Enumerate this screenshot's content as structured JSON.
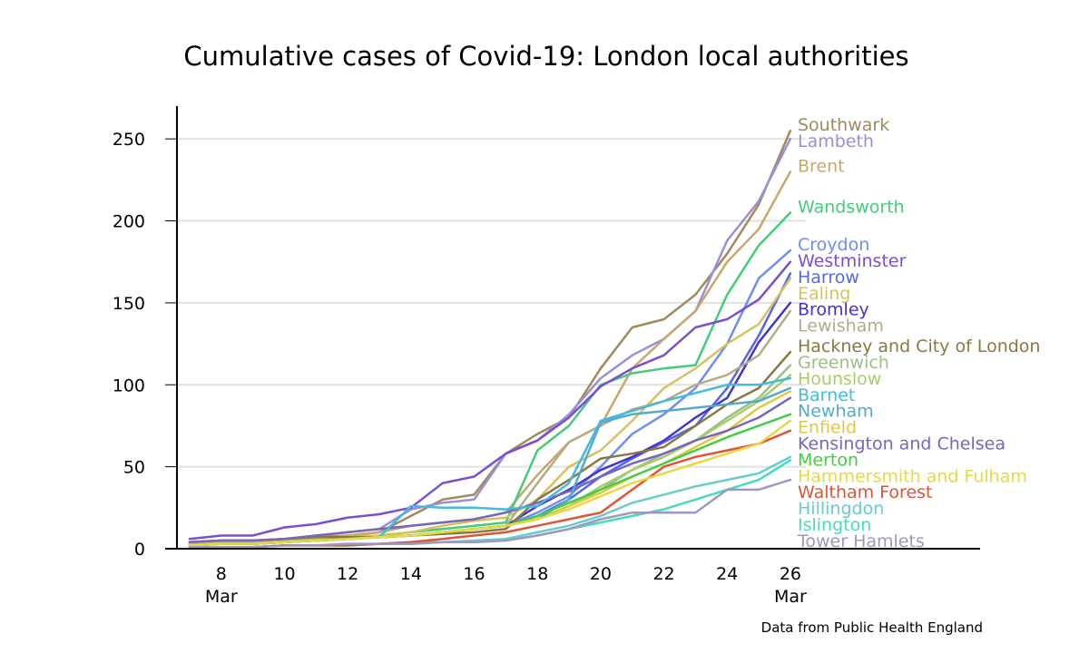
{
  "chart_data": {
    "type": "line",
    "title": "Cumulative cases of Covid-19:  London local authorities",
    "source": "Data from Public Health England",
    "x": [
      7,
      8,
      9,
      10,
      11,
      12,
      13,
      14,
      15,
      16,
      17,
      18,
      19,
      20,
      21,
      22,
      23,
      24,
      25,
      26
    ],
    "x_ticks": [
      8,
      10,
      12,
      14,
      16,
      18,
      20,
      22,
      24,
      26
    ],
    "x_month_labels": [
      {
        "at": 8,
        "text": "Mar"
      },
      {
        "at": 26,
        "text": "Mar"
      }
    ],
    "xlim": [
      6.6,
      32
    ],
    "ylim": [
      0,
      270
    ],
    "y_ticks": [
      0,
      50,
      100,
      150,
      200,
      250
    ],
    "grid": "horizontal",
    "legend": "direct labels at line ends (right)",
    "series": [
      {
        "name": "Southwark",
        "color": "#a08a5c",
        "values": [
          4,
          5,
          5,
          6,
          7,
          8,
          10,
          20,
          30,
          33,
          58,
          70,
          80,
          110,
          135,
          140,
          155,
          180,
          210,
          255
        ]
      },
      {
        "name": "Lambeth",
        "color": "#9a8fd8",
        "values": [
          4,
          5,
          5,
          6,
          8,
          10,
          12,
          24,
          28,
          30,
          58,
          66,
          82,
          104,
          118,
          128,
          145,
          188,
          212,
          250
        ]
      },
      {
        "name": "Brent",
        "color": "#c8a86a",
        "values": [
          3,
          4,
          4,
          5,
          6,
          8,
          10,
          14,
          16,
          18,
          22,
          45,
          65,
          75,
          110,
          128,
          145,
          175,
          195,
          230
        ]
      },
      {
        "name": "Wandsworth",
        "color": "#44cc77",
        "values": [
          3,
          3,
          4,
          5,
          6,
          7,
          8,
          10,
          12,
          14,
          16,
          60,
          75,
          100,
          107,
          110,
          112,
          155,
          185,
          205
        ]
      },
      {
        "name": "Croydon",
        "color": "#6c8ff0",
        "values": [
          2,
          3,
          3,
          4,
          5,
          6,
          7,
          8,
          10,
          12,
          14,
          22,
          32,
          50,
          70,
          82,
          98,
          125,
          165,
          182
        ]
      },
      {
        "name": "Westminster",
        "color": "#7a4fd0",
        "values": [
          6,
          8,
          8,
          13,
          15,
          19,
          21,
          25,
          40,
          44,
          58,
          66,
          80,
          99,
          110,
          118,
          135,
          140,
          152,
          175
        ]
      },
      {
        "name": "Harrow",
        "color": "#5566ee",
        "values": [
          2,
          3,
          3,
          4,
          5,
          6,
          7,
          8,
          10,
          12,
          14,
          20,
          30,
          44,
          55,
          65,
          75,
          98,
          130,
          168
        ]
      },
      {
        "name": "Ealing",
        "color": "#d8c060",
        "values": [
          3,
          4,
          4,
          5,
          6,
          7,
          8,
          10,
          14,
          17,
          19,
          30,
          50,
          60,
          78,
          98,
          110,
          125,
          137,
          165
        ]
      },
      {
        "name": "Bromley",
        "color": "#4433cc",
        "values": [
          2,
          3,
          3,
          4,
          5,
          6,
          7,
          8,
          10,
          12,
          14,
          26,
          36,
          48,
          56,
          66,
          80,
          92,
          126,
          150
        ]
      },
      {
        "name": "Lewisham",
        "color": "#b8aa88",
        "values": [
          2,
          3,
          3,
          4,
          5,
          6,
          7,
          8,
          10,
          12,
          14,
          40,
          65,
          75,
          85,
          90,
          100,
          106,
          118,
          145
        ]
      },
      {
        "name": "Hackney and City of London",
        "color": "#8a7840",
        "values": [
          4,
          5,
          5,
          6,
          7,
          7,
          7,
          8,
          9,
          10,
          12,
          30,
          42,
          55,
          58,
          62,
          75,
          88,
          98,
          120
        ]
      },
      {
        "name": "Greenwich",
        "color": "#99c088",
        "values": [
          2,
          3,
          3,
          4,
          5,
          6,
          7,
          8,
          10,
          12,
          14,
          18,
          26,
          36,
          48,
          58,
          66,
          80,
          92,
          112
        ]
      },
      {
        "name": "Hounslow",
        "color": "#a8cc66",
        "values": [
          2,
          3,
          3,
          4,
          5,
          6,
          7,
          8,
          10,
          12,
          14,
          18,
          26,
          38,
          48,
          56,
          66,
          78,
          90,
          106
        ]
      },
      {
        "name": "Enfield",
        "color": "#e0c844",
        "values": [
          2,
          3,
          3,
          4,
          5,
          6,
          7,
          8,
          10,
          12,
          14,
          18,
          26,
          34,
          44,
          52,
          62,
          72,
          86,
          96
        ]
      },
      {
        "name": "Kensington and Chelsea",
        "color": "#7766bb",
        "values": [
          4,
          5,
          5,
          6,
          8,
          10,
          12,
          14,
          16,
          18,
          22,
          28,
          35,
          44,
          52,
          58,
          66,
          72,
          80,
          92
        ]
      },
      {
        "name": "Newham",
        "color": "#55aacc",
        "values": [
          2,
          3,
          3,
          4,
          5,
          6,
          7,
          8,
          10,
          12,
          14,
          18,
          30,
          77,
          82,
          84,
          86,
          88,
          90,
          98
        ]
      },
      {
        "name": "Merton",
        "color": "#44cc44",
        "values": [
          2,
          3,
          3,
          4,
          5,
          6,
          7,
          8,
          10,
          12,
          14,
          20,
          28,
          36,
          44,
          52,
          60,
          68,
          75,
          82
        ]
      },
      {
        "name": "Barnet",
        "color": "#44bbdd",
        "values": [
          2,
          3,
          3,
          4,
          5,
          6,
          7,
          26,
          25,
          25,
          24,
          26,
          40,
          78,
          84,
          90,
          95,
          100,
          100,
          104
        ]
      },
      {
        "name": "Hillingdon",
        "color": "#66cccc",
        "values": [
          1,
          1,
          1,
          2,
          2,
          2,
          3,
          4,
          4,
          5,
          6,
          10,
          14,
          20,
          28,
          33,
          38,
          42,
          46,
          56
        ]
      },
      {
        "name": "Islington",
        "color": "#44ddbb",
        "values": [
          1,
          1,
          1,
          2,
          2,
          2,
          3,
          3,
          4,
          4,
          5,
          8,
          12,
          16,
          20,
          24,
          30,
          36,
          42,
          54
        ]
      },
      {
        "name": "Waltham Forest",
        "color": "#dd5533",
        "values": [
          1,
          1,
          1,
          2,
          2,
          2,
          3,
          4,
          6,
          8,
          10,
          14,
          18,
          22,
          36,
          50,
          56,
          60,
          64,
          72
        ]
      },
      {
        "name": "Hammersmith and Fulham",
        "color": "#e8d844",
        "values": [
          2,
          3,
          3,
          4,
          5,
          6,
          7,
          8,
          10,
          12,
          14,
          18,
          24,
          32,
          40,
          46,
          52,
          58,
          64,
          78
        ]
      },
      {
        "name": "Tower Hamlets",
        "color": "#a097c0",
        "values": [
          1,
          1,
          1,
          2,
          2,
          3,
          3,
          3,
          4,
          4,
          5,
          8,
          12,
          18,
          22,
          22,
          22,
          36,
          36,
          42
        ]
      }
    ]
  }
}
